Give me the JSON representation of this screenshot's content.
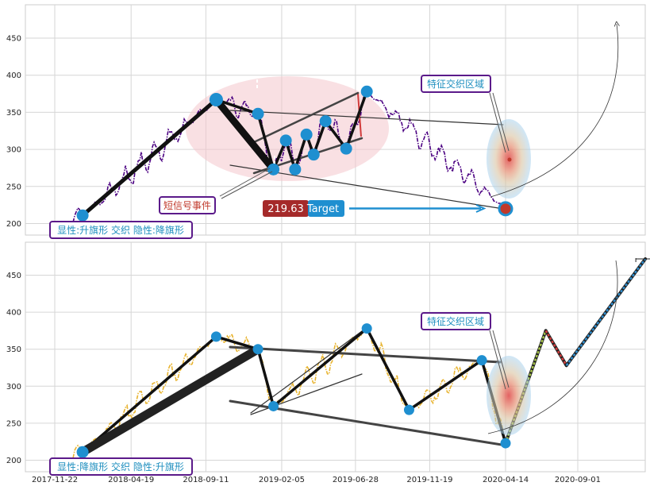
{
  "chart_data": [
    {
      "type": "line",
      "panel": "top",
      "ylim": [
        185,
        495
      ],
      "y_ticks": [
        "200",
        "250",
        "300",
        "350",
        "400",
        "450"
      ],
      "pattern_label": "显性:升旗形 交织 隐性:降旗形",
      "event_label": "短信号事件",
      "zone_label": "特征交织区域",
      "target_value": "219.63",
      "target_text": "Target",
      "series_color": "#4b0082",
      "pivots": [
        {
          "date": "2018-01-15",
          "value": 211
        },
        {
          "date": "2018-10-01",
          "value": 367
        },
        {
          "date": "2018-12-21",
          "value": 348
        },
        {
          "date": "2019-01-20",
          "value": 273
        },
        {
          "date": "2019-02-13",
          "value": 312
        },
        {
          "date": "2019-03-03",
          "value": 273
        },
        {
          "date": "2019-03-25",
          "value": 320
        },
        {
          "date": "2019-04-08",
          "value": 293
        },
        {
          "date": "2019-05-01",
          "value": 338
        },
        {
          "date": "2019-06-10",
          "value": 301
        },
        {
          "date": "2019-07-20",
          "value": 378
        },
        {
          "date": "2020-04-14",
          "value": 220
        }
      ]
    },
    {
      "type": "line",
      "panel": "bottom",
      "ylim": [
        185,
        495
      ],
      "y_ticks": [
        "200",
        "250",
        "300",
        "350",
        "400",
        "450"
      ],
      "pattern_label": "显性:降旗形 交织 隐性:升旗形",
      "zone_label": "特征交织区域",
      "series_color": "#e8b430",
      "x_ticks": [
        "2017-11-22",
        "2018-04-19",
        "2018-09-11",
        "2019-02-05",
        "2019-06-28",
        "2019-11-19",
        "2020-04-14",
        "2020-09-01"
      ],
      "pivots": [
        {
          "date": "2018-01-15",
          "value": 211
        },
        {
          "date": "2018-10-01",
          "value": 367
        },
        {
          "date": "2018-12-21",
          "value": 350
        },
        {
          "date": "2019-01-20",
          "value": 273
        },
        {
          "date": "2019-07-20",
          "value": 378
        },
        {
          "date": "2019-10-10",
          "value": 268
        },
        {
          "date": "2020-02-28",
          "value": 335
        },
        {
          "date": "2020-04-14",
          "value": 223
        }
      ],
      "projection": [
        {
          "date": "2020-04-14",
          "value": 223
        },
        {
          "date": "2020-07-01",
          "value": 375
        },
        {
          "date": "2020-08-10",
          "value": 328
        },
        {
          "date": "2021-01-10",
          "value": 472
        }
      ]
    }
  ]
}
